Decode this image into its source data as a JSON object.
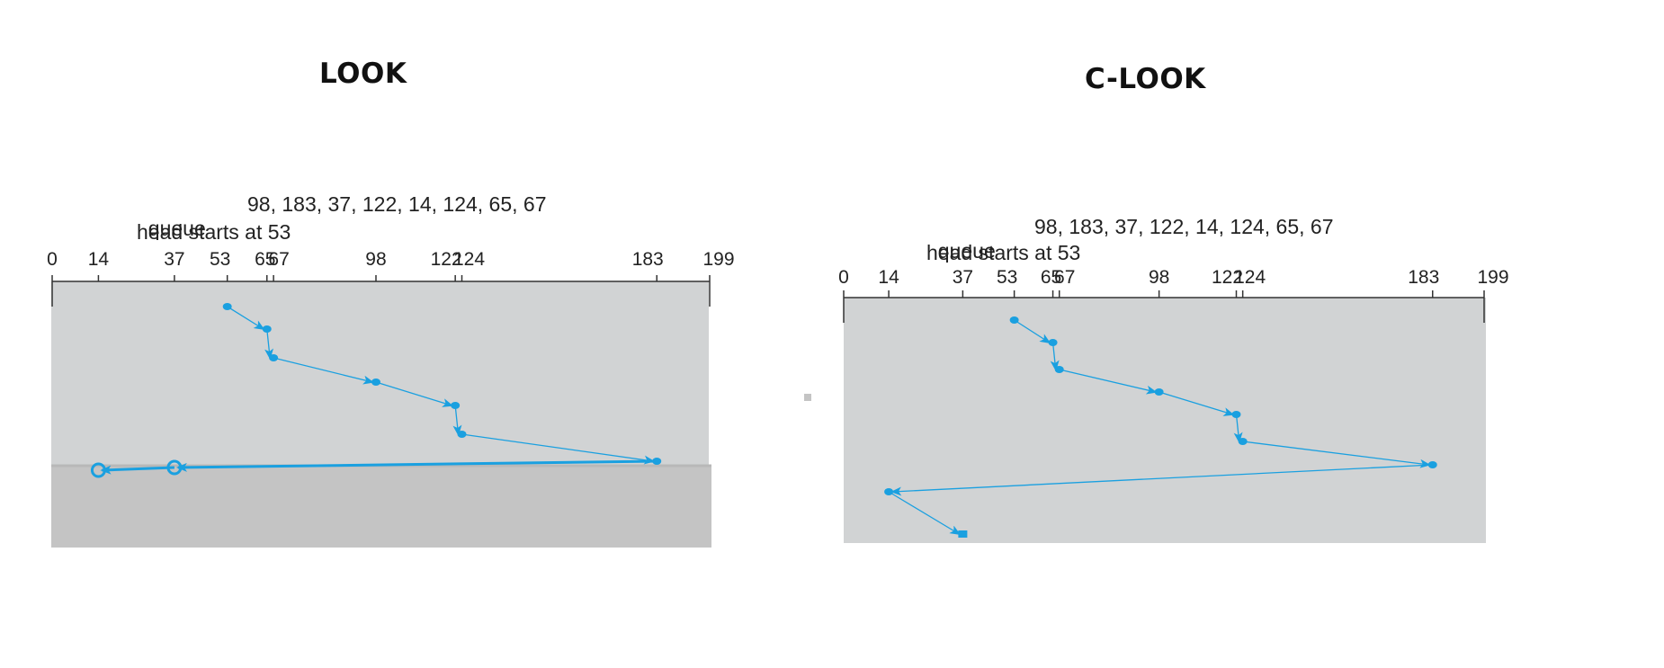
{
  "diagrams": [
    {
      "id": "look",
      "title": "LOOK",
      "queue_label": "queue",
      "queue_values": "98, 183, 37, 122, 14, 124, 65, 67",
      "head_text": "head starts at 53",
      "ticks": [
        "0",
        "14",
        "37",
        "53",
        "65",
        "67",
        "98",
        "122",
        "124",
        "183",
        "199"
      ],
      "tick_values": [
        0,
        14,
        37,
        53,
        65,
        67,
        98,
        122,
        124,
        183,
        199
      ],
      "service_order": [
        53,
        65,
        67,
        98,
        122,
        124,
        183,
        37,
        14
      ]
    },
    {
      "id": "c-look",
      "title": "C-LOOK",
      "queue_label": "queue",
      "queue_values": "98, 183, 37, 122, 14, 124, 65, 67",
      "head_text": "head starts at 53",
      "ticks": [
        "0",
        "14",
        "37",
        "53",
        "65",
        "67",
        "98",
        "122",
        "124",
        "183",
        "199"
      ],
      "tick_values": [
        0,
        14,
        37,
        53,
        65,
        67,
        98,
        122,
        124,
        183,
        199
      ],
      "service_order": [
        53,
        65,
        67,
        98,
        122,
        124,
        183,
        14,
        37
      ]
    }
  ],
  "colors": {
    "path": "#1aa0e0",
    "panel": "#d1d3d4",
    "panel_lower": "#c4c4c4",
    "axis": "#333333"
  }
}
